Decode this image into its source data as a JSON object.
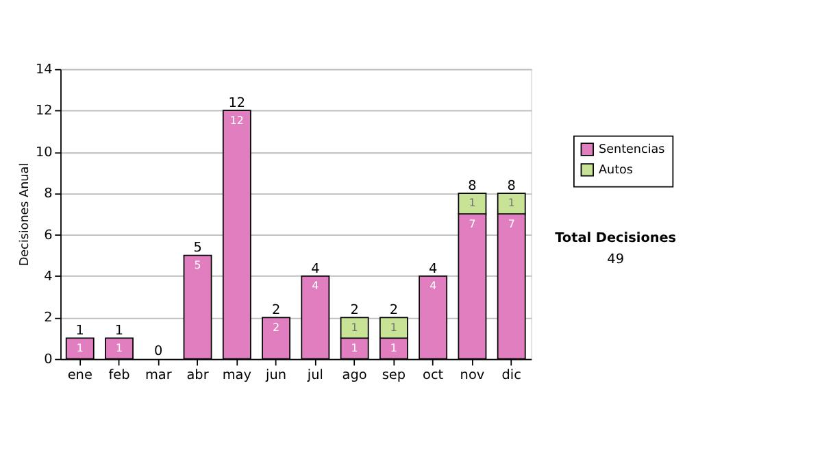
{
  "chart_data": {
    "type": "bar",
    "stacked": true,
    "ylabel": "Decisiones Anual",
    "categories": [
      "ene",
      "feb",
      "mar",
      "abr",
      "may",
      "jun",
      "jul",
      "ago",
      "sep",
      "oct",
      "nov",
      "dic"
    ],
    "series": [
      {
        "name": "Sentencias",
        "color": "#e07ec0",
        "values": [
          1,
          1,
          0,
          5,
          12,
          2,
          4,
          1,
          1,
          4,
          7,
          7
        ],
        "value_labels": [
          "1",
          "1",
          null,
          "5",
          "12",
          "2",
          "4",
          "1",
          "1",
          "4",
          "7",
          "7"
        ]
      },
      {
        "name": "Autos",
        "color": "#c8e396",
        "values": [
          0,
          0,
          0,
          0,
          0,
          0,
          0,
          1,
          1,
          0,
          1,
          1
        ],
        "value_labels": [
          null,
          null,
          null,
          null,
          null,
          null,
          null,
          "1",
          "1",
          null,
          "1",
          "1"
        ]
      }
    ],
    "totals": [
      "1",
      "1",
      "0",
      "5",
      "12",
      "2",
      "4",
      "2",
      "2",
      "4",
      "8",
      "8"
    ],
    "ylim": [
      0,
      14
    ],
    "yticks": [
      0,
      2,
      4,
      6,
      8,
      10,
      12,
      14
    ],
    "grid": "y",
    "legend": "right",
    "annotations": [
      "Total Decisiones",
      "49"
    ]
  }
}
